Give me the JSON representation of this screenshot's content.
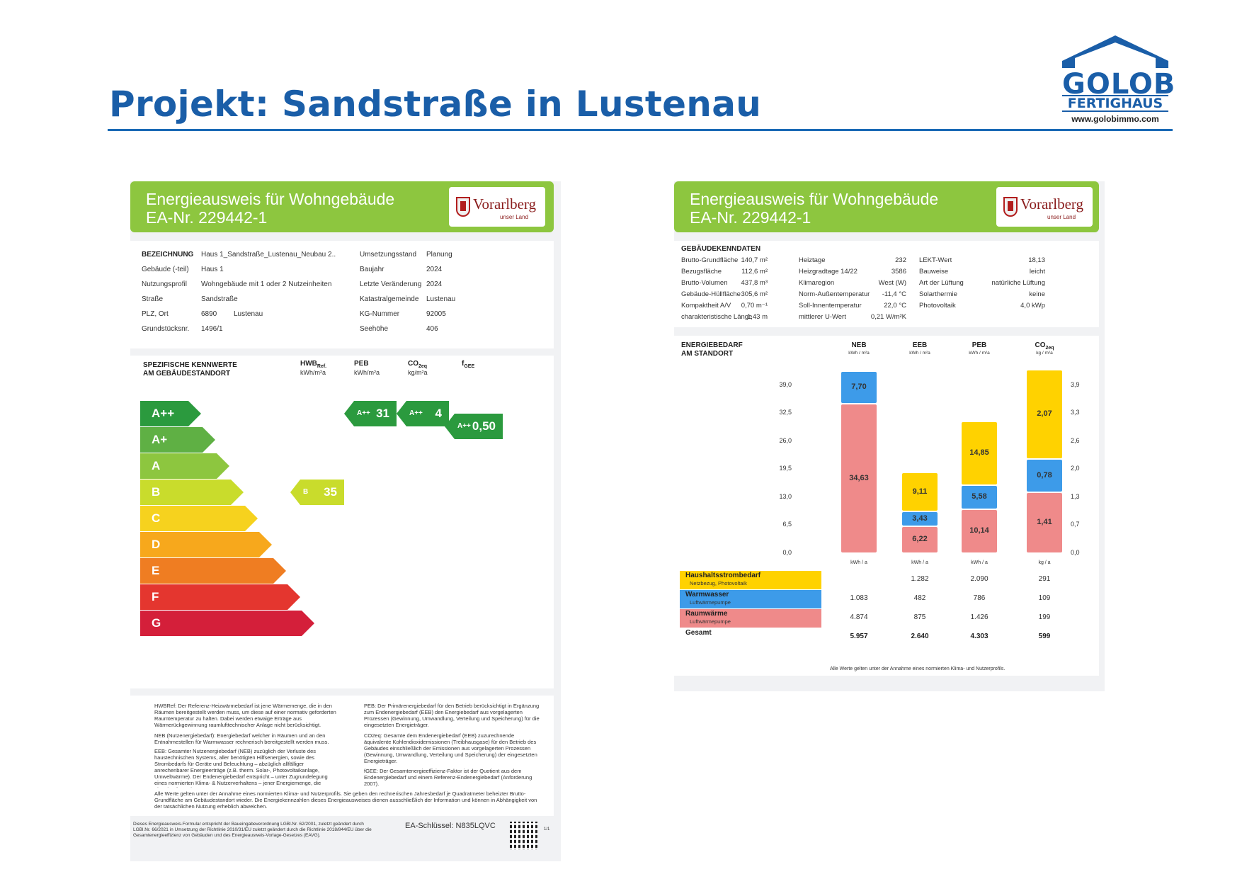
{
  "header": {
    "title": "Projekt: Sandstraße in Lustenau",
    "logo": {
      "brand": "GOLOB",
      "sub": "FERTIGHAUS",
      "url": "www.golobimmo.com",
      "color": "#1a5ea8"
    }
  },
  "left_certificate": {
    "banner": {
      "line1": "Energieausweis für Wohngebäude",
      "line2": "EA-Nr. 229442-1",
      "color": "#8dc63f"
    },
    "vorarlberg": {
      "name": "Vorarlberg",
      "sub": "unser Land"
    },
    "bezeichnung": [
      {
        "label": "BEZEICHNUNG",
        "value": "Haus 1_Sandstraße_Lustenau_Neubau 2..",
        "label2": "Umsetzungsstand",
        "value2": "Planung"
      },
      {
        "label": "Gebäude (-teil)",
        "value": "Haus 1",
        "label2": "Baujahr",
        "value2": "2024"
      },
      {
        "label": "Nutzungsprofil",
        "value": "Wohngebäude mit 1 oder 2 Nutzeinheiten",
        "label2": "Letzte Veränderung",
        "value2": "2024"
      },
      {
        "label": "Straße",
        "value": "Sandstraße",
        "label2": "Katastralgemeinde",
        "value2": "Lustenau"
      },
      {
        "label": "PLZ, Ort",
        "value": "6890",
        "value_b": "Lustenau",
        "label2": "KG-Nummer",
        "value2": "92005"
      },
      {
        "label": "Grundstücksnr.",
        "value": "1496/1",
        "label2": "Seehöhe",
        "value2": "406"
      }
    ],
    "kennwerte": {
      "title1": "SPEZIFISCHE KENNWERTE",
      "title2": "AM GEBÄUDESTANDORT",
      "columns": [
        {
          "name": "HWB",
          "sub": "Ref.",
          "unit": "kWh/m²a"
        },
        {
          "name": "PEB",
          "sub": "",
          "unit": "kWh/m²a"
        },
        {
          "name": "CO",
          "sub": "2eq",
          "unit": "kg/m²a"
        },
        {
          "name": "f",
          "sub": "GEE",
          "unit": ""
        }
      ],
      "classes": [
        {
          "label": "A++",
          "color": "#2b9a3e"
        },
        {
          "label": "A+",
          "color": "#5fb044"
        },
        {
          "label": "A",
          "color": "#8dc63f"
        },
        {
          "label": "B",
          "color": "#c9dc2c"
        },
        {
          "label": "C",
          "color": "#f6d21e"
        },
        {
          "label": "D",
          "color": "#f7a81c"
        },
        {
          "label": "E",
          "color": "#ef7d22"
        },
        {
          "label": "F",
          "color": "#e4362f"
        },
        {
          "label": "G",
          "color": "#d41f3a"
        }
      ],
      "indicators": [
        {
          "key": "hwb",
          "class_label": "B",
          "value": "35",
          "color": "#c9dc2c"
        },
        {
          "key": "peb",
          "class_label": "A++",
          "value": "31",
          "color": "#2b9a3e"
        },
        {
          "key": "co2",
          "class_label": "A++",
          "value": "4",
          "color": "#2b9a3e"
        },
        {
          "key": "fgee",
          "class_label": "A++",
          "value": "0,50",
          "color": "#2b9a3e"
        }
      ]
    },
    "notes": {
      "hwb": "HWBRef: Der Referenz-Heizwärmebedarf ist jene Wärmemenge, die in den Räumen bereitgestellt werden muss, um diese auf einer normativ geforderten Raumtemperatur zu halten. Dabei werden etwaige Erträge aus Wärmerückgewinnung raumlufttechnischer Anlage nicht berücksichtigt.",
      "neb": "NEB (Nutzenergiebedarf): Energiebedarf welcher in Räumen und an den Entnahmestellen für Warmwasser rechnerisch bereitgestellt werden muss.",
      "eeb": "EEB: Gesamter Nutzenergiebedarf (NEB) zuzüglich der Verluste des haustechnischen Systems, aller benötigten Hilfsenergien, sowie des Strombedarfs für Geräte und Beleuchtung – abzüglich allfälliger anrechenbarer Energieerträge (z.B. therm. Solar-, Photovoltaikanlage, Umweltwärme). Der Endenergiebedarf entspricht – unter Zugrundelegung eines normierten Klima- & Nutzerverhaltens – jener Energiemenge, die eingekauft werden muss.",
      "peb": "PEB: Der Primärenergiebedarf für den Betrieb berücksichtigt in Ergänzung zum Endenergiebedarf (EEB) den Energiebedarf aus vorgelagerten Prozessen (Gewinnung, Umwandlung, Verteilung und Speicherung) für die eingesetzten Energieträger.",
      "co2": "CO2eq: Gesamte dem Endenergiebedarf (EEB) zuzurechnende äquivalente Kohlendioxidemissionen (Treibhausgase) für den Betrieb des Gebäudes einschließlich der Emissionen aus vorgelagerten Prozessen (Gewinnung, Umwandlung, Verteilung und Speicherung) der eingesetzten Energieträger.",
      "fgee": "fGEE: Der Gesamtenergieeffizienz-Faktor ist der Quotient aus dem Endenergiebedarf und einem Referenz-Endenergiebedarf (Anforderung 2007).",
      "all": "Alle Werte gelten unter der Annahme eines normierten Klima- und Nutzerprofils. Sie geben den rechnerischen Jahresbedarf je Quadratmeter beheizter Brutto-Grundfläche am Gebäudestandort wieder. Die Energiekennzahlen dieses Energieausweises dienen ausschließlich der Information und können in Abhängigkeit von der tatsächlichen Nutzung erheblich abweichen."
    },
    "footer": {
      "legal": "Dieses Energieausweis-Formular entspricht der Baueingabeverordnung LGBl.Nr. 62/2001, zuletzt geändert durch LGBl.Nr. 66/2021 in Umsetzung der Richtlinie 2010/31/EU zuletzt geändert durch die Richtlinie 2018/844/EU über die Gesamtenergieeffizienz von Gebäuden und des Energieausweis-Vorlage-Gesetzes (EAVG).",
      "key": "EA-Schlüssel: N835LQVC",
      "page": "1/1"
    }
  },
  "right_certificate": {
    "banner": {
      "line1": "Energieausweis für Wohngebäude",
      "line2": "EA-Nr. 229442-1",
      "color": "#8dc63f"
    },
    "vorarlberg": {
      "name": "Vorarlberg",
      "sub": "unser Land"
    },
    "kenndaten": {
      "title": "GEBÄUDEKENNDATEN",
      "rows": [
        [
          "Brutto-Grundfläche",
          "140,7 m²",
          "Heiztage",
          "232",
          "LEKT-Wert",
          "18,13"
        ],
        [
          "Bezugsfläche",
          "112,6 m²",
          "Heizgradtage 14/22",
          "3586",
          "Bauweise",
          "leicht"
        ],
        [
          "Brutto-Volumen",
          "437,8 m³",
          "Klimaregion",
          "West (W)",
          "Art der Lüftung",
          "natürliche Lüftung"
        ],
        [
          "Gebäude-Hüllfläche",
          "305,6 m²",
          "Norm-Außentemperatur",
          "-11,4 °C",
          "Solarthermie",
          "keine"
        ],
        [
          "Kompaktheit A/V",
          "0,70 m⁻¹",
          "Soll-Innentemperatur",
          "22,0 °C",
          "Photovoltaik",
          "4,0 kWp"
        ],
        [
          "charakteristische Länge",
          "1,43 m",
          "mittlerer U-Wert",
          "0,21 W/m²K",
          "",
          ""
        ]
      ]
    },
    "energiebedarf": {
      "title1": "ENERGIEBEDARF",
      "title2": "AM STANDORT",
      "footnote": "Alle Werte gelten unter der Annahme eines normierten Klima- und Nutzerprofils.",
      "rows": [
        {
          "label": "Haushaltsstrombedarf",
          "sub": "Netzbezug, Photovoltaik",
          "color": "#ffd200",
          "values": [
            "",
            "1.282",
            "2.090",
            "291"
          ]
        },
        {
          "label": "Warmwasser",
          "sub": "Luftwärmepumpe",
          "color": "#3d9be9",
          "values": [
            "1.083",
            "482",
            "786",
            "109"
          ]
        },
        {
          "label": "Raumwärme",
          "sub": "Luftwärmepumpe",
          "color": "#ef8a8a",
          "values": [
            "4.874",
            "875",
            "1.426",
            "199"
          ]
        },
        {
          "label": "Gesamt",
          "sub": "",
          "color": "",
          "values": [
            "5.957",
            "2.640",
            "4.303",
            "599"
          ]
        }
      ]
    }
  },
  "chart_data": {
    "type": "bar",
    "stacked": true,
    "categories": [
      "NEB",
      "EEB",
      "PEB",
      "CO2eq"
    ],
    "category_units_top": [
      "kWh / m²a",
      "kWh / m²a",
      "kWh / m²a",
      "kg / m²a"
    ],
    "category_units_bottom": [
      "kWh / a",
      "kWh / a",
      "kWh / a",
      "kg / a"
    ],
    "y_left_ticks": [
      "0,0",
      "6,5",
      "13,0",
      "19,5",
      "26,0",
      "32,5",
      "39,0"
    ],
    "y_right_ticks": [
      "0,0",
      "0,7",
      "1,3",
      "2,0",
      "2,6",
      "3,3",
      "3,9"
    ],
    "ylim": [
      0,
      39
    ],
    "ylim_right": [
      0,
      3.9
    ],
    "series": [
      {
        "name": "Raumwärme",
        "color": "#ef8a8a",
        "values": [
          34.63,
          6.22,
          10.14,
          1.41
        ],
        "labels": [
          "34,63",
          "6,22",
          "10,14",
          "1,41"
        ]
      },
      {
        "name": "Warmwasser",
        "color": "#3d9be9",
        "values": [
          7.7,
          3.43,
          5.58,
          0.78
        ],
        "labels": [
          "7,70",
          "3,43",
          "5,58",
          "0,78"
        ]
      },
      {
        "name": "Haushaltsstrombedarf",
        "color": "#ffd200",
        "values": [
          0,
          9.11,
          14.85,
          2.07
        ],
        "labels": [
          "",
          "9,11",
          "14,85",
          "2,07"
        ]
      }
    ]
  }
}
